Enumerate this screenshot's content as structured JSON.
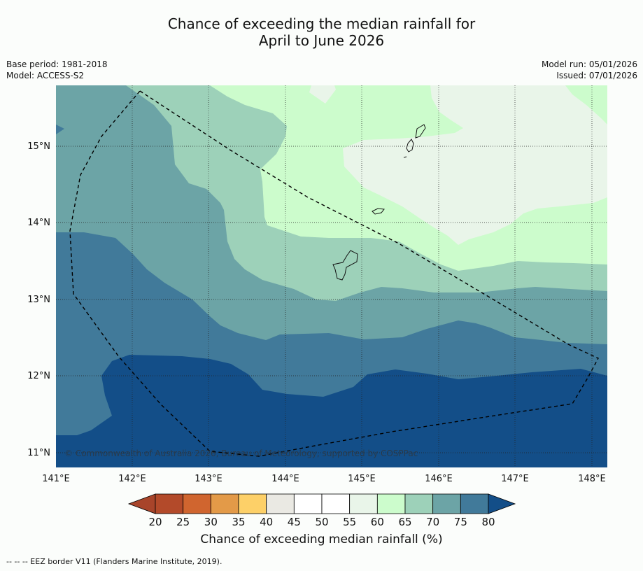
{
  "title": {
    "line1": "Chance of exceeding the median rainfall for",
    "line2": "April to June 2026"
  },
  "meta": {
    "base_period": "Base period: 1981-2018",
    "model": "Model: ACCESS-S2",
    "model_run": "Model run: 05/01/2026",
    "issued": "Issued: 07/01/2026"
  },
  "map": {
    "copyright": "© Commonwealth of Australia 2026, Bureau of Meteorology, supported by COSPPac",
    "lon_labels": [
      "141°E",
      "142°E",
      "143°E",
      "144°E",
      "145°E",
      "146°E",
      "147°E",
      "148°E"
    ],
    "lat_labels": [
      "15°N",
      "14°N",
      "13°N",
      "12°N",
      "11°N"
    ],
    "lon_range": [
      141.0,
      148.2
    ],
    "lat_range": [
      10.8,
      15.8
    ]
  },
  "legend": {
    "title": "Chance of exceeding median rainfall (%)",
    "ticks": [
      "20",
      "25",
      "30",
      "35",
      "40",
      "45",
      "50",
      "55",
      "60",
      "65",
      "70",
      "75",
      "80"
    ],
    "colors": [
      "#b34a2a",
      "#d0652f",
      "#e39a48",
      "#fdd068",
      "#eae9e3",
      "#ffffff",
      "#ffffff",
      "#e9f5e9",
      "#ccfccc",
      "#9dd1b9",
      "#6ca4a6",
      "#417a9a"
    ],
    "under_color": "#a8442a",
    "over_color": "#134e88"
  },
  "footnote": "--  --  -- EEZ border V11 (Flanders Marine Institute, 2019)."
}
